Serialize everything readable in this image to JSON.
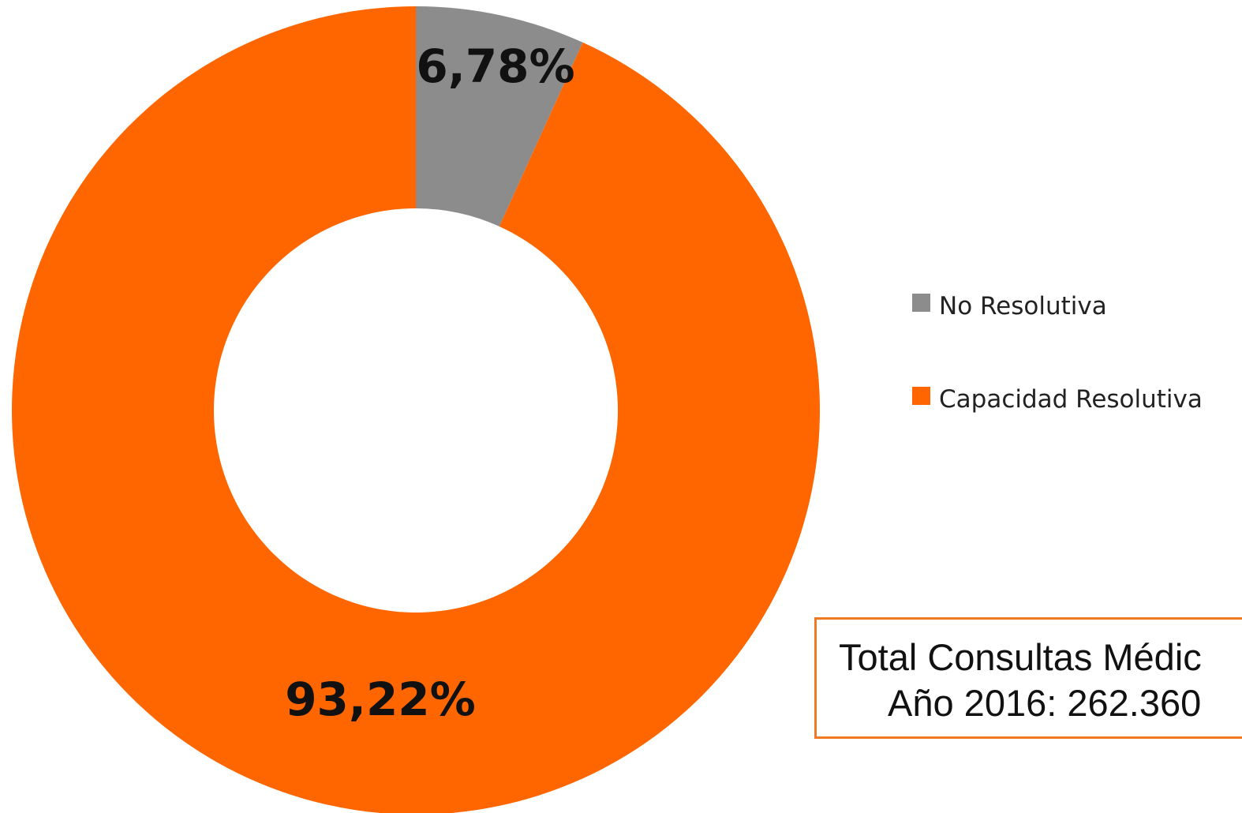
{
  "chart_data": {
    "type": "pie",
    "variant": "donut",
    "title": "",
    "labels": [
      "No Resolutiva",
      "Capacidad Resolutiva"
    ],
    "values": [
      6.78,
      93.22
    ],
    "value_labels": [
      "6,78%",
      "93,22%"
    ],
    "colors": [
      "#8c8c8c",
      "#ff6600"
    ],
    "legend_position": "right"
  },
  "info_box": {
    "line1": "Total Consultas Médic",
    "line2": "Año 2016: 262.360",
    "border_color": "#f07a22"
  }
}
